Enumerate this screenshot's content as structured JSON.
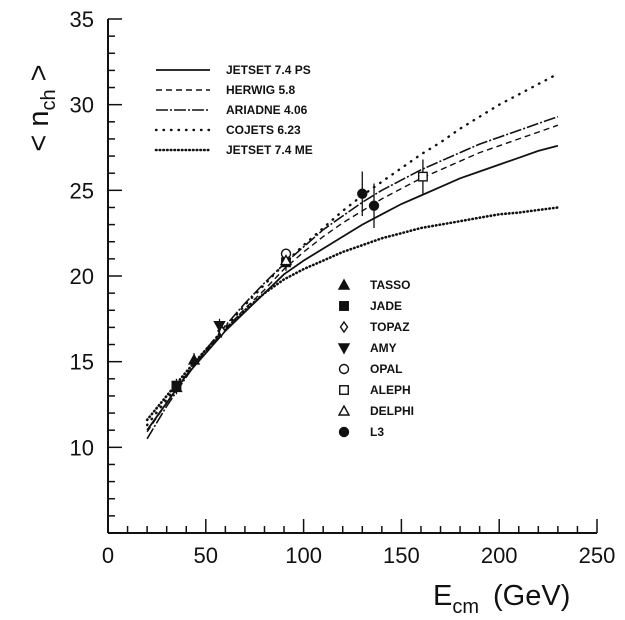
{
  "chart_data": {
    "type": "line",
    "title": "",
    "xlabel": {
      "main": "E",
      "sub": "cm",
      "unit": "(GeV)"
    },
    "ylabel": {
      "left": "<",
      "main": "n",
      "sub": "ch",
      "right": ">"
    },
    "xlim": [
      0,
      250
    ],
    "ylim": [
      5,
      35
    ],
    "xticks": [
      0,
      50,
      100,
      150,
      200,
      250
    ],
    "yticks": [
      10,
      15,
      20,
      25,
      30,
      35
    ],
    "grid": false,
    "legend_position": "top-left",
    "series": [
      {
        "name": "JETSET 7.4 PS",
        "style": "solid",
        "x": [
          20,
          30,
          40,
          50,
          60,
          70,
          80,
          90,
          100,
          110,
          120,
          130,
          140,
          150,
          160,
          170,
          180,
          190,
          200,
          210,
          220,
          230
        ],
        "y": [
          11.0,
          12.6,
          14.2,
          15.5,
          16.8,
          17.9,
          19.0,
          20.1,
          20.9,
          21.6,
          22.3,
          23.0,
          23.6,
          24.2,
          24.7,
          25.2,
          25.7,
          26.1,
          26.5,
          26.9,
          27.3,
          27.6
        ]
      },
      {
        "name": "HERWIG 5.8",
        "style": "dashed",
        "x": [
          20,
          30,
          40,
          50,
          60,
          70,
          80,
          90,
          100,
          110,
          120,
          130,
          140,
          150,
          160,
          170,
          180,
          190,
          200,
          210,
          220,
          230
        ],
        "y": [
          10.9,
          12.6,
          14.2,
          15.6,
          16.9,
          18.1,
          19.2,
          20.4,
          21.4,
          22.3,
          23.1,
          23.8,
          24.5,
          25.1,
          25.7,
          26.2,
          26.7,
          27.2,
          27.6,
          28.0,
          28.4,
          28.8
        ]
      },
      {
        "name": "ARIADNE 4.06",
        "style": "dashdot",
        "x": [
          20,
          30,
          40,
          50,
          60,
          70,
          80,
          90,
          100,
          110,
          120,
          130,
          140,
          150,
          160,
          170,
          180,
          190,
          200,
          210,
          220,
          230
        ],
        "y": [
          10.5,
          12.4,
          14.1,
          15.7,
          17.1,
          18.4,
          19.6,
          20.7,
          21.7,
          22.7,
          23.5,
          24.3,
          25.0,
          25.6,
          26.2,
          26.7,
          27.2,
          27.7,
          28.1,
          28.5,
          28.9,
          29.3
        ]
      },
      {
        "name": "COJETS 6.23",
        "style": "dotted-sparse",
        "x": [
          20,
          30,
          40,
          50,
          60,
          70,
          80,
          90,
          100,
          110,
          120,
          130,
          140,
          150,
          160,
          170,
          180,
          190,
          200,
          210,
          220,
          230
        ],
        "y": [
          11.3,
          12.8,
          14.3,
          15.7,
          17.0,
          18.3,
          19.5,
          20.7,
          21.8,
          22.8,
          23.8,
          24.7,
          25.5,
          26.3,
          27.1,
          27.8,
          28.6,
          29.3,
          30.0,
          30.6,
          31.2,
          31.8
        ]
      },
      {
        "name": "JETSET 7.4 ME",
        "style": "dotted-dense",
        "x": [
          20,
          30,
          40,
          50,
          60,
          70,
          80,
          90,
          100,
          110,
          120,
          130,
          140,
          150,
          160,
          170,
          180,
          190,
          200,
          210,
          220,
          230
        ],
        "y": [
          11.6,
          13.0,
          14.4,
          15.7,
          16.9,
          18.0,
          19.0,
          19.8,
          20.4,
          20.9,
          21.4,
          21.8,
          22.2,
          22.5,
          22.8,
          23.0,
          23.2,
          23.4,
          23.6,
          23.7,
          23.85,
          24.0
        ]
      }
    ],
    "data_points": [
      {
        "name": "TASSO",
        "marker": "triangle-up-filled",
        "points": [
          {
            "x": 35,
            "y": 13.5,
            "err": 0.4
          },
          {
            "x": 44,
            "y": 15.1,
            "err": 0.4
          }
        ]
      },
      {
        "name": "JADE",
        "marker": "square-filled",
        "points": [
          {
            "x": 35,
            "y": 13.6,
            "err": 0.4
          },
          {
            "x": 91,
            "y": 20.8,
            "err": 0.5
          }
        ]
      },
      {
        "name": "TOPAZ",
        "marker": "diamond-open",
        "points": [
          {
            "x": 58,
            "y": 16.8,
            "err": 0.4
          }
        ]
      },
      {
        "name": "AMY",
        "marker": "triangle-down-filled",
        "points": [
          {
            "x": 57,
            "y": 17.1,
            "err": 0.4
          }
        ]
      },
      {
        "name": "OPAL",
        "marker": "circle-open",
        "points": [
          {
            "x": 91,
            "y": 21.3,
            "err": 0.3
          }
        ]
      },
      {
        "name": "ALEPH",
        "marker": "square-open",
        "points": [
          {
            "x": 161,
            "y": 25.8,
            "err": 1.0
          }
        ]
      },
      {
        "name": "DELPHI",
        "marker": "triangle-up-open",
        "points": [
          {
            "x": 91,
            "y": 20.9,
            "err": 0.3
          }
        ]
      },
      {
        "name": "L3",
        "marker": "circle-filled",
        "points": [
          {
            "x": 130,
            "y": 24.8,
            "err": 1.3
          },
          {
            "x": 136,
            "y": 24.1,
            "err": 1.3
          }
        ]
      }
    ]
  }
}
